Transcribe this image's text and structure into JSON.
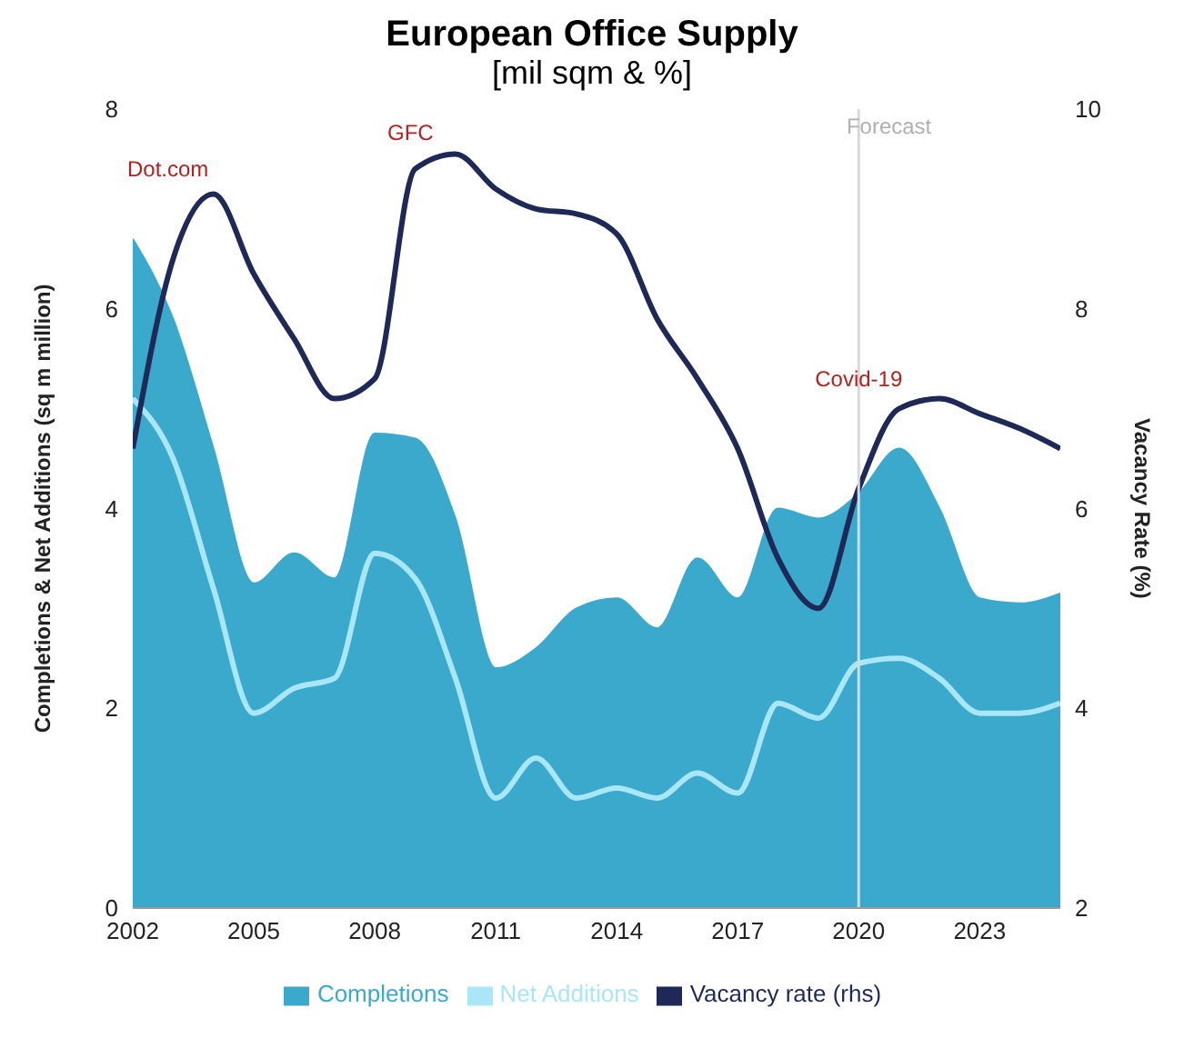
{
  "chart_data": {
    "type": "area",
    "title": "European Office Supply",
    "subtitle": "[mil sqm & %]",
    "ylabel": "Completions & Net Additions (sq m million)",
    "y2label": "Vacancy Rate (%)",
    "x": [
      2002,
      2003,
      2004,
      2005,
      2006,
      2007,
      2008,
      2009,
      2010,
      2011,
      2012,
      2013,
      2014,
      2015,
      2016,
      2017,
      2018,
      2019,
      2020,
      2021,
      2022,
      2023,
      2024,
      2025
    ],
    "series": [
      {
        "name": "Completions",
        "color": "#3aa9cc",
        "values": [
          6.7,
          5.9,
          4.6,
          3.25,
          3.55,
          3.3,
          4.75,
          4.7,
          3.9,
          2.4,
          2.6,
          3.0,
          3.1,
          2.8,
          3.5,
          3.1,
          4.0,
          3.9,
          4.15,
          4.6,
          4.0,
          3.1,
          3.05,
          3.15
        ]
      },
      {
        "name": "Net Additions",
        "type": "line",
        "color": "#a9e6f7",
        "values": [
          5.1,
          4.5,
          3.2,
          1.95,
          2.2,
          2.3,
          3.55,
          3.3,
          2.3,
          1.1,
          1.5,
          1.1,
          1.2,
          1.1,
          1.35,
          1.15,
          2.05,
          1.9,
          2.45,
          2.5,
          2.3,
          1.95,
          1.95,
          2.05
        ]
      },
      {
        "name": "Vacancy rate (rhs)",
        "type": "line",
        "axis": "y2",
        "color": "#1f2958",
        "values": [
          6.6,
          8.5,
          9.15,
          8.35,
          7.7,
          7.1,
          7.3,
          9.4,
          9.55,
          9.2,
          9.0,
          8.95,
          8.75,
          7.9,
          7.3,
          6.6,
          5.5,
          5.0,
          6.2,
          7.0,
          7.1,
          6.95,
          6.8,
          6.6
        ]
      }
    ],
    "xlim": [
      2002,
      2025
    ],
    "xticks": [
      2002,
      2005,
      2008,
      2011,
      2014,
      2017,
      2020,
      2023
    ],
    "ylim": [
      0,
      8
    ],
    "yticks": [
      0,
      2,
      4,
      6,
      8
    ],
    "y2lim": [
      2,
      10
    ],
    "y2ticks": [
      2,
      4,
      6,
      8,
      10
    ],
    "ref_lines": [
      {
        "axis": "x",
        "value": 2020,
        "label": "Forecast",
        "color": "#d9d9d9"
      }
    ],
    "annotations": [
      "Dot.com",
      "GFC",
      {
        "text": "Covid-19",
        "x": 2020,
        "y": 5.3
      }
    ],
    "legend": "bottom",
    "marker": "none",
    "line_style": "solid"
  }
}
